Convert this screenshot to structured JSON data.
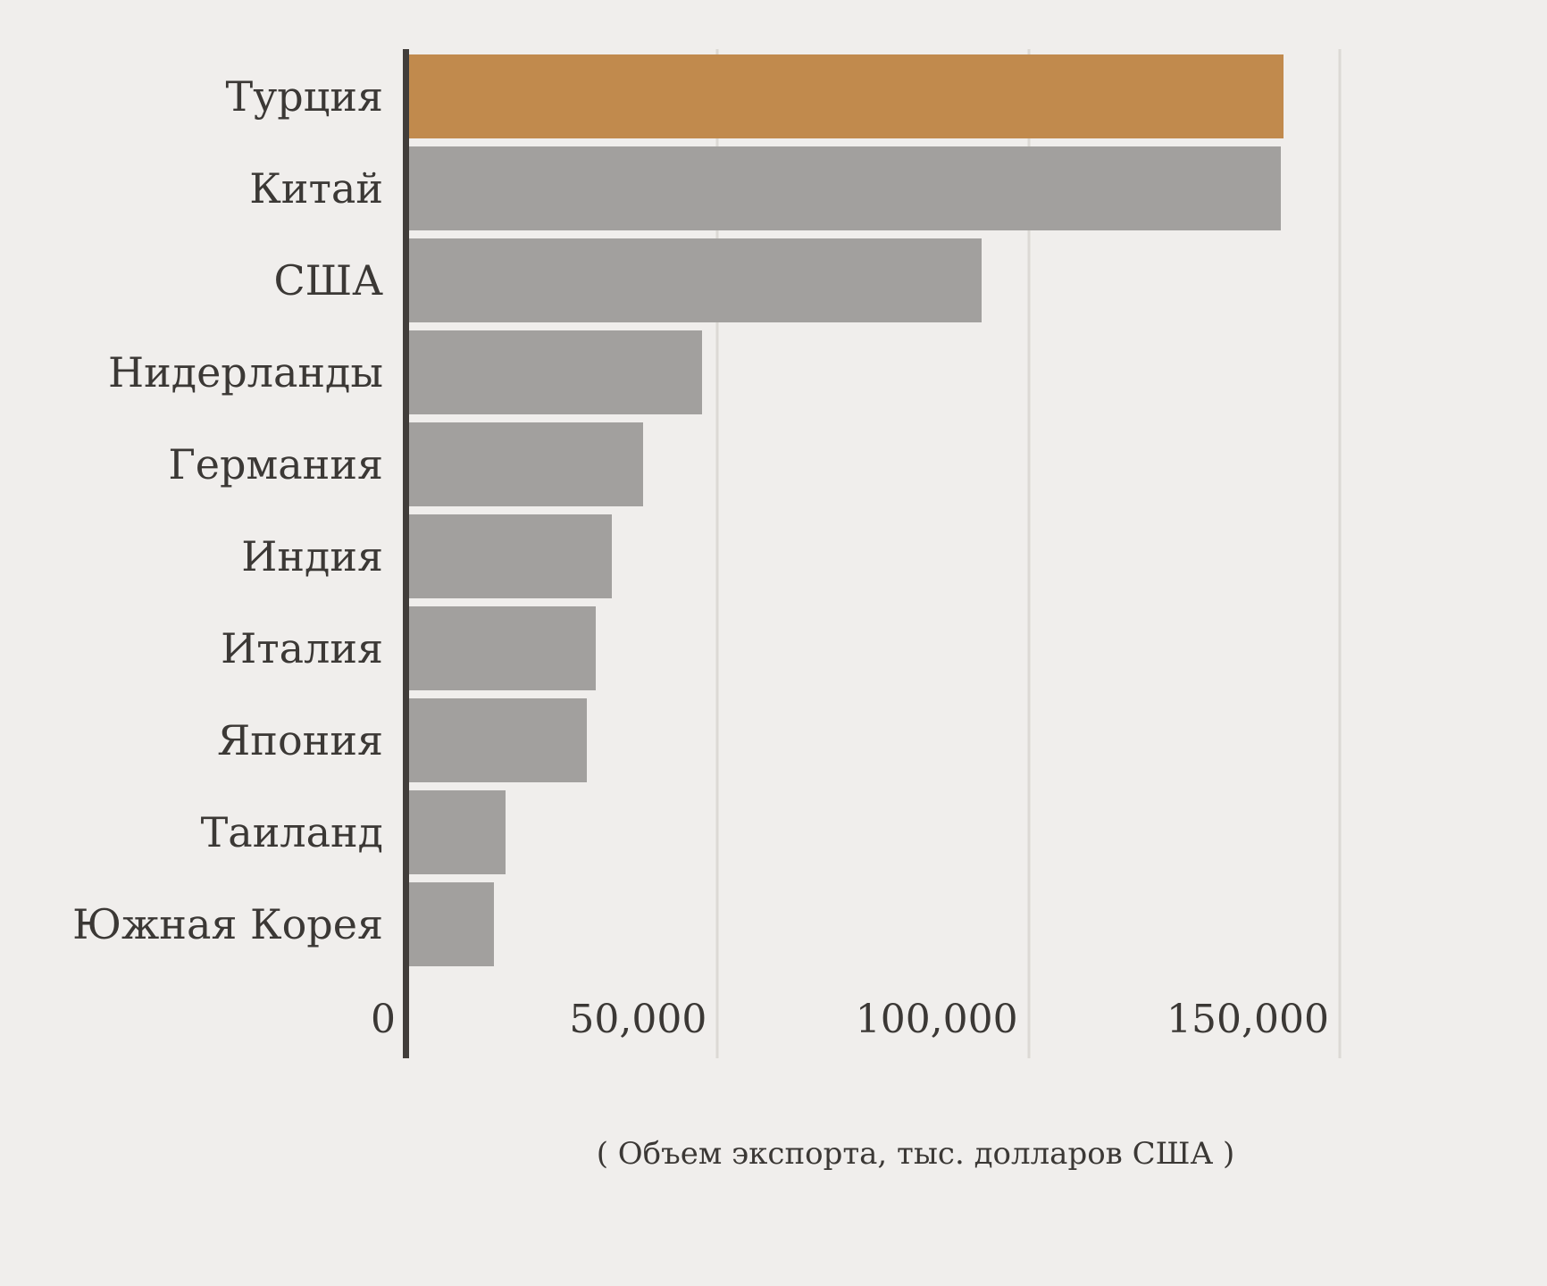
{
  "chart_data": {
    "type": "bar",
    "orientation": "horizontal",
    "title": "",
    "xlabel": "( Объем экспорта, тыс. долларов США )",
    "ylabel": "",
    "categories": [
      "Турция",
      "Китай",
      "США",
      "Нидерланды",
      "Германия",
      "Индия",
      "Италия",
      "Япония",
      "Таиланд",
      "Южная Корея"
    ],
    "values": [
      141000,
      140500,
      92500,
      47500,
      38000,
      33000,
      30500,
      29000,
      16000,
      14000
    ],
    "highlight_category": "Турция",
    "xlim": [
      0,
      150000
    ],
    "x_ticks": [
      0,
      50000,
      100000,
      150000
    ],
    "x_tick_labels": [
      "0",
      "50,000",
      "100,000",
      "150,000"
    ],
    "grid": "vertical",
    "legend": "none"
  },
  "colors": {
    "background": "#f0eeec",
    "bar_default": "#a2a09e",
    "bar_highlight": "#c18a4d",
    "axis_line": "#413d3a",
    "gridline": "#dcd9d5",
    "text": "#3b3835"
  }
}
